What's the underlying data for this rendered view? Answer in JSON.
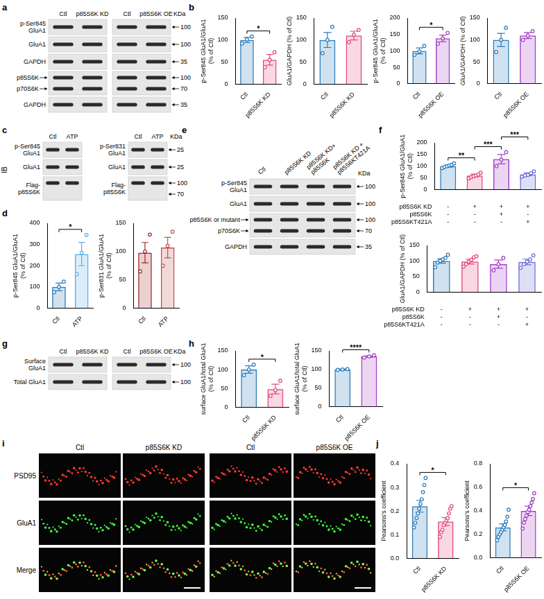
{
  "panel_letters": [
    "a",
    "b",
    "c",
    "d",
    "e",
    "f",
    "g",
    "h",
    "i",
    "j"
  ],
  "blots": {
    "a": {
      "kda": "KDa",
      "lanes": [
        "Ctl",
        "p85S6K KD",
        "Ctl",
        "p85S6K OE"
      ],
      "rows": [
        {
          "label": [
            "p-Ser845",
            "GluA1"
          ],
          "markers": [
            100
          ]
        },
        {
          "label": [
            "GluA1"
          ],
          "markers": [
            100
          ]
        },
        {
          "label": [
            "GAPDH"
          ],
          "markers": [
            35
          ]
        },
        {
          "band_labels": [
            "p85S6K",
            "p70S6K"
          ],
          "markers": [
            100,
            70
          ]
        },
        {
          "label": [
            "GAPDH"
          ],
          "markers": [
            35
          ]
        }
      ]
    },
    "c": {
      "side_label": "IB",
      "kda": "KDa",
      "left": {
        "lanes": [
          "Ctl",
          "ATP"
        ],
        "rows": [
          {
            "label": [
              "p-Ser845",
              "GluA1"
            ]
          },
          {
            "label": [
              "GluA1"
            ]
          },
          {
            "label": [
              "Flag-",
              "p85S6K"
            ]
          }
        ]
      },
      "right": {
        "lanes": [
          "Ctl",
          "ATP"
        ],
        "rows": [
          {
            "label": [
              "p-Ser831",
              "GluA1"
            ],
            "markers": [
              25
            ]
          },
          {
            "label": [
              "GluA1"
            ],
            "markers": [
              25
            ]
          },
          {
            "label": [
              "Flag-",
              "p85S6K"
            ],
            "markers": [
              100,
              70
            ]
          }
        ]
      }
    },
    "e": {
      "kda": "KDa",
      "lanes": [
        [
          "Ctl"
        ],
        [
          "p85S6K KD"
        ],
        [
          "p85S6K KD+",
          "p85S6K"
        ],
        [
          "p85S6K KD +",
          "p85S6KT421A"
        ]
      ],
      "rows": [
        {
          "label": [
            "p-Ser845",
            "GluA1"
          ],
          "markers": [
            100
          ]
        },
        {
          "label": [
            "GluA1"
          ],
          "markers": [
            100
          ]
        },
        {
          "band_labels": [
            "p85S6K or mutant",
            "p70S6K"
          ],
          "markers": [
            100,
            70
          ]
        },
        {
          "label": [
            "GAPDH"
          ],
          "markers": [
            35
          ]
        }
      ]
    },
    "g": {
      "kda": "KDa",
      "lanes": [
        "Ctl",
        "p85S6K KD",
        "Ctl",
        "p85S6K OE"
      ],
      "rows": [
        {
          "label": [
            "Surface",
            "GluA1"
          ],
          "markers": [
            100
          ]
        },
        {
          "label": [
            "Total GluA1"
          ],
          "markers": [
            100
          ]
        }
      ]
    }
  },
  "micrograph": {
    "columns": [
      "Ctl",
      "p85S6K KD",
      "Ctl",
      "p85S6K OE"
    ],
    "rows": [
      "PSD95",
      "GluA1",
      "Merge"
    ]
  },
  "chart_data": [
    {
      "type": "bar",
      "y_label": [
        "p-Ser845 GluA1/GluA1",
        "(% of Ctl)"
      ],
      "categories": [
        "Ctl",
        "p85S6K KD"
      ],
      "values": [
        100,
        55
      ],
      "errors": [
        6,
        12
      ],
      "points": [
        [
          92,
          101,
          108
        ],
        [
          38,
          55,
          72
        ]
      ],
      "colors": [
        "#2b7bba",
        "#e2477f"
      ],
      "ylim": [
        0,
        150
      ],
      "yticks": [
        0,
        50,
        100,
        150
      ],
      "significance": [
        {
          "from": 0,
          "to": 1,
          "label": "*"
        }
      ]
    },
    {
      "type": "bar",
      "y_label": [
        "GluA1/GAPDH (% of Ctl)"
      ],
      "categories": [
        "Ctl",
        "p85S6K KD"
      ],
      "values": [
        100,
        110
      ],
      "errors": [
        17,
        10
      ],
      "points": [
        [
          70,
          100,
          130
        ],
        [
          95,
          112,
          123
        ]
      ],
      "colors": [
        "#2b7bba",
        "#e2477f"
      ],
      "ylim": [
        0,
        150
      ],
      "yticks": [
        0,
        50,
        100,
        150
      ]
    },
    {
      "type": "bar",
      "y_label": [
        "p-Ser845 GluA1/GluA1",
        "(% of Ctl)"
      ],
      "categories": [
        "Ctl",
        "p85S6K OE"
      ],
      "values": [
        100,
        138
      ],
      "errors": [
        9,
        10
      ],
      "points": [
        [
          88,
          98,
          115
        ],
        [
          122,
          138,
          155
        ]
      ],
      "colors": [
        "#2b7bba",
        "#a23fc7"
      ],
      "ylim": [
        0,
        200
      ],
      "yticks": [
        0,
        50,
        100,
        150,
        200
      ],
      "significance": [
        {
          "from": 0,
          "to": 1,
          "label": "*"
        }
      ]
    },
    {
      "type": "bar",
      "y_label": [
        "GluA1/GAPDH (% of Ctl)"
      ],
      "categories": [
        "Ctl",
        "p85S6K OE"
      ],
      "values": [
        100,
        110
      ],
      "errors": [
        15,
        7
      ],
      "points": [
        [
          72,
          100,
          128
        ],
        [
          100,
          110,
          120
        ]
      ],
      "colors": [
        "#2b7bba",
        "#a23fc7"
      ],
      "ylim": [
        0,
        150
      ],
      "yticks": [
        0,
        50,
        100,
        150
      ]
    },
    {
      "type": "bar",
      "y_label": [
        "p-Ser845 GluA1/GluA1",
        "(% of Ctl)"
      ],
      "categories": [
        "Ctl",
        "ATP"
      ],
      "values": [
        100,
        255
      ],
      "errors": [
        18,
        55
      ],
      "points": [
        [
          75,
          100,
          125
        ],
        [
          160,
          260,
          345
        ]
      ],
      "colors": [
        "#2b7bba",
        "#5aaee6"
      ],
      "ylim": [
        0,
        400
      ],
      "yticks": [
        0,
        100,
        200,
        300,
        400
      ],
      "significance": [
        {
          "from": 0,
          "to": 1,
          "label": "*"
        }
      ]
    },
    {
      "type": "bar",
      "y_label": [
        "p-Ser831 GluA1/GluA1",
        "(% of Ctl)"
      ],
      "categories": [
        "Ctl",
        "ATP"
      ],
      "values": [
        98,
        107
      ],
      "errors": [
        18,
        18
      ],
      "points": [
        [
          65,
          100,
          130
        ],
        [
          75,
          110,
          135
        ]
      ],
      "colors": [
        "#9e2b2b",
        "#c0504d"
      ],
      "ylim": [
        0,
        150
      ],
      "yticks": [
        0,
        50,
        100,
        150
      ]
    },
    {
      "type": "bar",
      "y_label": [
        "p-Ser845 GluA1/GluA1",
        "(% of Ctl)"
      ],
      "categories": [
        null,
        null,
        null,
        null
      ],
      "values": [
        100,
        60,
        130,
        65
      ],
      "errors": [
        4,
        6,
        20,
        6
      ],
      "points": [
        [
          92,
          96,
          100,
          103,
          106,
          112
        ],
        [
          48,
          53,
          57,
          60,
          64,
          72
        ],
        [
          100,
          128,
          160
        ],
        [
          55,
          60,
          63,
          70,
          78
        ]
      ],
      "colors": [
        "#2b7bba",
        "#e2477f",
        "#a23fc7",
        "#6b6fd6"
      ],
      "ylim": [
        0,
        200
      ],
      "yticks": [
        0,
        50,
        100,
        150,
        200
      ],
      "significance": [
        {
          "from": 0,
          "to": 1,
          "label": "**"
        },
        {
          "from": 1,
          "to": 2,
          "label": "***"
        },
        {
          "from": 2,
          "to": 3,
          "label": "***"
        }
      ],
      "condition_table": [
        {
          "label": "p85S6K KD",
          "marks": [
            "-",
            "+",
            "+",
            "+"
          ]
        },
        {
          "label": "p85S6K",
          "marks": [
            "-",
            "-",
            "+",
            "-"
          ]
        },
        {
          "label": "p85S6KT421A",
          "marks": [
            "-",
            "-",
            "-",
            "+"
          ]
        }
      ]
    },
    {
      "type": "bar",
      "y_label": [
        "GluA1/GAPDH (% of Ctl)"
      ],
      "categories": [
        null,
        null,
        null,
        null
      ],
      "values": [
        100,
        98,
        90,
        97
      ],
      "errors": [
        7,
        8,
        13,
        9
      ],
      "points": [
        [
          80,
          95,
          100,
          105,
          110,
          120
        ],
        [
          82,
          90,
          98,
          104,
          112,
          115
        ],
        [
          70,
          90,
          110
        ],
        [
          78,
          90,
          98,
          105,
          118
        ]
      ],
      "colors": [
        "#2b7bba",
        "#e2477f",
        "#a23fc7",
        "#6b6fd6"
      ],
      "ylim": [
        0,
        150
      ],
      "yticks": [
        0,
        50,
        100,
        150
      ],
      "condition_table": [
        {
          "label": "p85S6K KD",
          "marks": [
            "-",
            "+",
            "+",
            "+"
          ]
        },
        {
          "label": "p85S6K",
          "marks": [
            "-",
            "-",
            "+",
            "-"
          ]
        },
        {
          "label": "p85S6KT421A",
          "marks": [
            "-",
            "-",
            "-",
            "+"
          ]
        }
      ]
    },
    {
      "type": "bar",
      "y_label": [
        "surface GluA1/total GluA1",
        "(% of Ctl)"
      ],
      "categories": [
        "Ctl",
        "p85S6K KD"
      ],
      "values": [
        100,
        48
      ],
      "errors": [
        10,
        13
      ],
      "points": [
        [
          85,
          100,
          113
        ],
        [
          30,
          45,
          70
        ]
      ],
      "colors": [
        "#2b7bba",
        "#e2477f"
      ],
      "ylim": [
        0,
        150
      ],
      "yticks": [
        0,
        50,
        100,
        150
      ],
      "significance": [
        {
          "from": 0,
          "to": 1,
          "label": "*"
        }
      ]
    },
    {
      "type": "bar",
      "y_label": [
        "surface GluA1/total GluA1",
        "(% of Ctl)"
      ],
      "categories": [
        "Ctl",
        "p85S6K OE"
      ],
      "values": [
        100,
        135
      ],
      "errors": [
        1,
        2
      ],
      "points": [
        [
          99,
          100,
          101
        ],
        [
          132,
          135,
          138
        ]
      ],
      "colors": [
        "#2b7bba",
        "#a23fc7"
      ],
      "ylim": [
        0,
        150
      ],
      "yticks": [
        0,
        50,
        100,
        150
      ],
      "significance": [
        {
          "from": 0,
          "to": 1,
          "label": "****"
        }
      ]
    },
    {
      "type": "bar",
      "y_label": [
        "Pearsons's coefficient"
      ],
      "categories": [
        "Ctl",
        "p85S6K KD"
      ],
      "values": [
        0.22,
        0.155
      ],
      "errors": [
        0.025,
        0.017
      ],
      "points": [
        [
          0.13,
          0.15,
          0.17,
          0.19,
          0.21,
          0.23,
          0.25,
          0.28,
          0.31,
          0.34
        ],
        [
          0.09,
          0.11,
          0.12,
          0.14,
          0.15,
          0.16,
          0.17,
          0.19,
          0.21,
          0.22
        ]
      ],
      "colors": [
        "#2b7bba",
        "#e2477f"
      ],
      "ylim": [
        0,
        0.4
      ],
      "yticks": [
        {
          "value": 0,
          "label": "0.0"
        },
        0.1,
        0.2,
        0.3,
        0.4
      ],
      "significance": [
        {
          "from": 0,
          "to": 1,
          "label": "*"
        }
      ]
    },
    {
      "type": "bar",
      "y_label": [
        "Pearsons's coefficient"
      ],
      "categories": [
        "Ctl",
        "p85S6K OE"
      ],
      "values": [
        0.26,
        0.4
      ],
      "errors": [
        0.03,
        0.04
      ],
      "points": [
        [
          0.15,
          0.18,
          0.2,
          0.22,
          0.24,
          0.26,
          0.28,
          0.31,
          0.35,
          0.41
        ],
        [
          0.25,
          0.3,
          0.33,
          0.36,
          0.39,
          0.41,
          0.44,
          0.47,
          0.5,
          0.55
        ]
      ],
      "colors": [
        "#2b7bba",
        "#a23fc7"
      ],
      "ylim": [
        0,
        0.8
      ],
      "yticks": [
        {
          "value": 0,
          "label": "0.0"
        },
        0.2,
        0.4,
        0.6,
        0.8
      ],
      "significance": [
        {
          "from": 0,
          "to": 1,
          "label": "*"
        }
      ]
    }
  ]
}
